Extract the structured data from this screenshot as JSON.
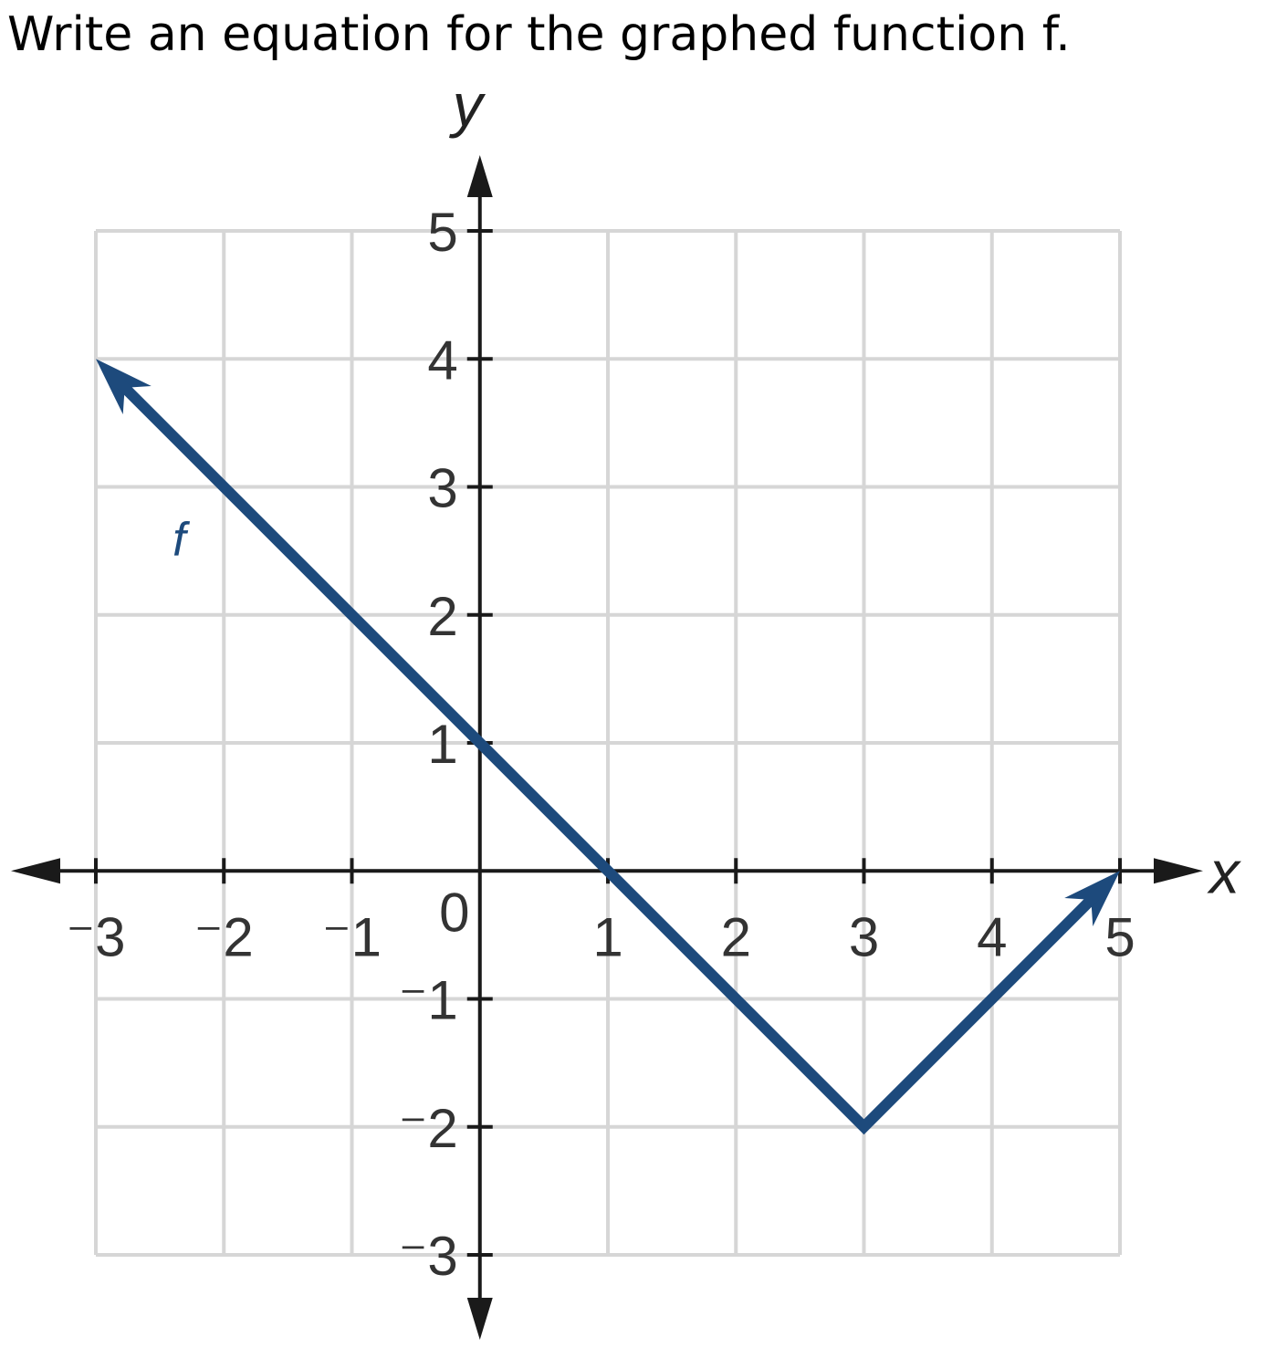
{
  "question": "Write an equation for the graphed function f.",
  "chart_data": {
    "type": "line",
    "title": "",
    "xlabel": "x",
    "ylabel": "y",
    "xlim": [
      -3,
      5
    ],
    "ylim": [
      -3,
      5
    ],
    "grid": true,
    "x_ticks": [
      {
        "value": -3,
        "label": "⁻3"
      },
      {
        "value": -2,
        "label": "⁻2"
      },
      {
        "value": -1,
        "label": "⁻1"
      },
      {
        "value": 1,
        "label": "1"
      },
      {
        "value": 2,
        "label": "2"
      },
      {
        "value": 3,
        "label": "3"
      },
      {
        "value": 4,
        "label": "4"
      },
      {
        "value": 5,
        "label": "5"
      }
    ],
    "y_ticks": [
      {
        "value": 5,
        "label": "5"
      },
      {
        "value": 4,
        "label": "4"
      },
      {
        "value": 3,
        "label": "3"
      },
      {
        "value": 2,
        "label": "2"
      },
      {
        "value": 1,
        "label": "1"
      },
      {
        "value": -1,
        "label": "⁻1"
      },
      {
        "value": -2,
        "label": "⁻2"
      },
      {
        "value": -3,
        "label": "⁻3"
      }
    ],
    "origin_label": "0",
    "series": [
      {
        "name": "f",
        "color": "#1d4a7c",
        "points": [
          {
            "x": -3,
            "y": 4
          },
          {
            "x": 3,
            "y": -2
          },
          {
            "x": 5,
            "y": 0
          }
        ],
        "arrow_start": true,
        "arrow_end": true
      }
    ]
  }
}
